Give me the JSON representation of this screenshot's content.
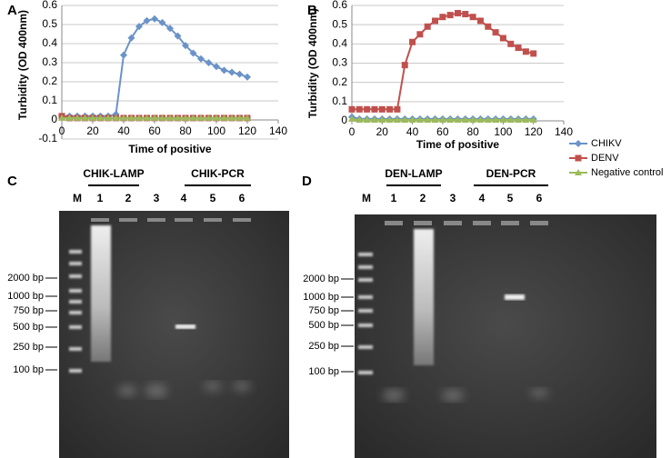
{
  "chart_data": [
    {
      "type": "line",
      "label": "A",
      "y_label": "Turbidity (OD 400nm)",
      "x_label": "Time of positive",
      "x": [
        0,
        5,
        10,
        15,
        20,
        25,
        30,
        35,
        40,
        45,
        50,
        55,
        60,
        65,
        70,
        75,
        80,
        85,
        90,
        95,
        100,
        105,
        110,
        115,
        120
      ],
      "xlim": [
        0,
        140
      ],
      "xticks": [
        0,
        20,
        40,
        60,
        80,
        100,
        120,
        140
      ],
      "ylim": [
        -0.1,
        0.6
      ],
      "yticks": [
        -0.1,
        0,
        0.1,
        0.2,
        0.3,
        0.4,
        0.5,
        0.6
      ],
      "grid": true,
      "series": [
        {
          "color": "#6b93c8",
          "marker": "diamond",
          "values": [
            0.02,
            0.02,
            0.02,
            0.02,
            0.02,
            0.02,
            0.02,
            0.03,
            0.34,
            0.43,
            0.49,
            0.52,
            0.53,
            0.51,
            0.48,
            0.44,
            0.39,
            0.35,
            0.32,
            0.3,
            0.28,
            0.26,
            0.25,
            0.24,
            0.225
          ]
        },
        {
          "color": "#c0504d",
          "marker": "square",
          "values": [
            0.02,
            0.01,
            0.01,
            0.01,
            0.01,
            0.01,
            0.01,
            0.01,
            0.01,
            0.01,
            0.01,
            0.01,
            0.01,
            0.01,
            0.01,
            0.01,
            0.01,
            0.01,
            0.01,
            0.01,
            0.01,
            0.01,
            0.01,
            0.01,
            0.01
          ]
        },
        {
          "color": "#9bbb59",
          "marker": "triangle",
          "values": [
            0.01,
            0.01,
            0.01,
            0.01,
            0.01,
            0.01,
            0.01,
            0.01,
            0.01,
            0.01,
            0.01,
            0.01,
            0.01,
            0.01,
            0.01,
            0.01,
            0.01,
            0.01,
            0.01,
            0.01,
            0.01,
            0.01,
            0.01,
            0.01,
            0.01
          ]
        }
      ]
    },
    {
      "type": "line",
      "label": "B",
      "y_label": "Turbidity (OD 400nm)",
      "x_label": "Time of positive",
      "x": [
        0,
        5,
        10,
        15,
        20,
        25,
        30,
        35,
        40,
        45,
        50,
        55,
        60,
        65,
        70,
        75,
        80,
        85,
        90,
        95,
        100,
        105,
        110,
        115,
        120
      ],
      "xlim": [
        0,
        140
      ],
      "xticks": [
        0,
        20,
        40,
        60,
        80,
        100,
        120,
        140
      ],
      "ylim": [
        0,
        0.6
      ],
      "yticks": [
        0,
        0.1,
        0.2,
        0.3,
        0.4,
        0.5,
        0.6
      ],
      "grid": true,
      "legend": "right",
      "series": [
        {
          "name": "CHIKV",
          "color": "#6b93c8",
          "marker": "diamond",
          "values": [
            0.02,
            0.01,
            0.01,
            0.01,
            0.01,
            0.01,
            0.01,
            0.01,
            0.01,
            0.01,
            0.01,
            0.01,
            0.01,
            0.01,
            0.01,
            0.01,
            0.01,
            0.01,
            0.01,
            0.01,
            0.01,
            0.01,
            0.01,
            0.01,
            0.01
          ]
        },
        {
          "name": "DENV",
          "color": "#c0504d",
          "marker": "square",
          "values": [
            0.06,
            0.06,
            0.06,
            0.06,
            0.06,
            0.06,
            0.06,
            0.29,
            0.41,
            0.45,
            0.49,
            0.52,
            0.54,
            0.55,
            0.56,
            0.555,
            0.54,
            0.52,
            0.49,
            0.46,
            0.43,
            0.4,
            0.38,
            0.36,
            0.35
          ]
        },
        {
          "name": "Negative control",
          "color": "#9bbb59",
          "marker": "triangle",
          "values": [
            0.01,
            0.005,
            0.005,
            0.005,
            0.005,
            0.005,
            0.005,
            0.005,
            0.005,
            0.005,
            0.005,
            0.005,
            0.005,
            0.005,
            0.005,
            0.005,
            0.005,
            0.005,
            0.005,
            0.005,
            0.005,
            0.005,
            0.005,
            0.005,
            0.005
          ]
        }
      ]
    }
  ],
  "gels": [
    {
      "label": "C",
      "lanes": [
        "M",
        "1",
        "2",
        "3",
        "4",
        "5",
        "6"
      ],
      "groups": [
        "CHIK-LAMP",
        "CHIK-PCR"
      ],
      "markers": [
        "2000 bp",
        "1000 bp",
        "750 bp",
        "500 bp",
        "250 bp",
        "100 bp"
      ]
    },
    {
      "label": "D",
      "lanes": [
        "M",
        "1",
        "2",
        "3",
        "4",
        "5",
        "6"
      ],
      "groups": [
        "DEN-LAMP",
        "DEN-PCR"
      ],
      "markers": [
        "2000 bp",
        "1000 bp",
        "750 bp",
        "500 bp",
        "250 bp",
        "100 bp"
      ]
    }
  ]
}
